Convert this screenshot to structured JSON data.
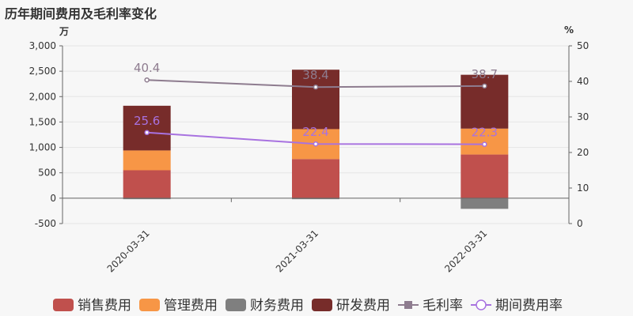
{
  "title": "历年期间费用及毛利率变化",
  "left_unit": "万",
  "right_unit": "%",
  "chart_data": {
    "type": "bar",
    "categories": [
      "2020-03-31",
      "2021-03-31",
      "2022-03-31"
    ],
    "series": [
      {
        "name": "销售费用",
        "kind": "bar",
        "axis": "left",
        "color": "#c0504d",
        "values": [
          550,
          770,
          860
        ]
      },
      {
        "name": "管理费用",
        "kind": "bar",
        "axis": "left",
        "color": "#f79646",
        "values": [
          390,
          590,
          510
        ]
      },
      {
        "name": "财务费用",
        "kind": "bar",
        "axis": "left",
        "color": "#7f7f7f",
        "values": [
          -20,
          -20,
          -210
        ]
      },
      {
        "name": "研发费用",
        "kind": "bar",
        "axis": "left",
        "color": "#772c2a",
        "values": [
          880,
          1170,
          1060
        ]
      },
      {
        "name": "毛利率",
        "kind": "line",
        "axis": "right",
        "color": "#8e7c8f",
        "values": [
          40.4,
          38.4,
          38.7
        ],
        "labels": [
          "40.4",
          "38.4",
          "38.7"
        ]
      },
      {
        "name": "期间费用率",
        "kind": "line",
        "axis": "right",
        "color": "#a872e0",
        "values": [
          25.6,
          22.4,
          22.3
        ],
        "labels": [
          "25.6",
          "22.4",
          "22.3"
        ]
      }
    ],
    "y_left": {
      "min": -500,
      "max": 3000,
      "ticks": [
        -500,
        0,
        500,
        1000,
        1500,
        2000,
        2500,
        3000
      ],
      "tick_labels": [
        "-500",
        "0",
        "500",
        "1,000",
        "1,500",
        "2,000",
        "2,500",
        "3,000"
      ]
    },
    "y_right": {
      "min": 0,
      "max": 50,
      "ticks": [
        0,
        10,
        20,
        30,
        40,
        50
      ],
      "tick_labels": [
        "0",
        "10",
        "20",
        "30",
        "40",
        "50"
      ]
    },
    "legend_position": "bottom"
  }
}
